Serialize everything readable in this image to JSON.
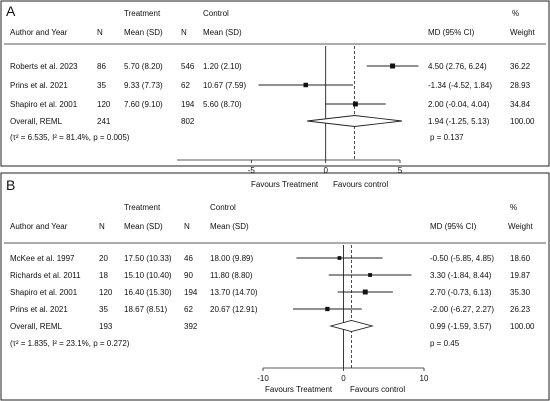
{
  "chart_data": [
    {
      "type": "forest",
      "panel_label": "A",
      "headers": {
        "author_year": "Author and Year",
        "n_treatment": "N",
        "treatment_group": "Treatment",
        "treatment_mean": "Mean (SD)",
        "n_control": "N",
        "control_group": "Control",
        "control_mean": "Mean (SD)",
        "md": "MD (95% CI)",
        "weight_pct": "%",
        "weight": "Weight"
      },
      "studies": [
        {
          "author": "Roberts et al. 2023",
          "n_t": "86",
          "mean_t": "5.70 (8.20)",
          "n_c": "546",
          "mean_c": "1.20 (2.10)",
          "md_text": "4.50 (2.76, 6.24)",
          "weight": "36.22",
          "md": 4.5,
          "lo": 2.76,
          "hi": 6.24
        },
        {
          "author": "Prins et al. 2021",
          "n_t": "35",
          "mean_t": "9.33 (7.73)",
          "n_c": "62",
          "mean_c": "10.67 (7.59)",
          "md_text": "-1.34 (-4.52, 1.84)",
          "weight": "28.93",
          "md": -1.34,
          "lo": -4.52,
          "hi": 1.84
        },
        {
          "author": "Shapiro et al. 2001",
          "n_t": "120",
          "mean_t": "7.60 (9.10)",
          "n_c": "194",
          "mean_c": "5.60 (8.70)",
          "md_text": "2.00 (-0.04, 4.04)",
          "weight": "34.84",
          "md": 2.0,
          "lo": -0.04,
          "hi": 4.04
        }
      ],
      "overall": {
        "label": "Overall, REML",
        "n_t": "241",
        "n_c": "802",
        "md_text": "1.94 (-1.25, 5.13)",
        "weight": "100.00",
        "md": 1.94,
        "lo": -1.25,
        "hi": 5.13
      },
      "heterogeneity": "(τ² = 6.535, I² = 81.4%, p = 0.005)",
      "p_value": "p = 0.137",
      "x_ticks": [
        -5,
        0,
        5
      ],
      "x_range": [
        -10,
        5
      ],
      "favours_left": "Favours Treatment",
      "favours_right": "Favours control"
    },
    {
      "type": "forest",
      "panel_label": "B",
      "headers": {
        "author_year": "Author and Year",
        "n_treatment": "N",
        "treatment_group": "Treatment",
        "treatment_mean": "Mean (SD)",
        "n_control": "N",
        "control_group": "Control",
        "control_mean": "Mean (SD)",
        "md": "MD (95% CI)",
        "weight_pct": "%",
        "weight": "Weight"
      },
      "studies": [
        {
          "author": "McKee et al. 1997",
          "n_t": "20",
          "mean_t": "17.50 (10.33)",
          "n_c": "46",
          "mean_c": "18.00 (9.89)",
          "md_text": "-0.50 (-5.85, 4.85)",
          "weight": "18.60",
          "md": -0.5,
          "lo": -5.85,
          "hi": 4.85
        },
        {
          "author": "Richards et al. 2011",
          "n_t": "18",
          "mean_t": "15.10 (10.40)",
          "n_c": "90",
          "mean_c": "11.80 (8.80)",
          "md_text": "3.30 (-1.84, 8.44)",
          "weight": "19.87",
          "md": 3.3,
          "lo": -1.84,
          "hi": 8.44
        },
        {
          "author": "Shapiro et al. 2001",
          "n_t": "120",
          "mean_t": "16.40 (15.30)",
          "n_c": "194",
          "mean_c": "13.70 (14.70)",
          "md_text": "2.70 (-0.73, 6.13)",
          "weight": "35.30",
          "md": 2.7,
          "lo": -0.73,
          "hi": 6.13
        },
        {
          "author": "Prins et al. 2021",
          "n_t": "35",
          "mean_t": "18.67 (8.51)",
          "n_c": "62",
          "mean_c": "20.67 (12.91)",
          "md_text": "-2.00 (-6.27, 2.27)",
          "weight": "26.23",
          "md": -2.0,
          "lo": -6.27,
          "hi": 2.27
        }
      ],
      "overall": {
        "label": "Overall, REML",
        "n_t": "193",
        "n_c": "392",
        "md_text": "0.99 (-1.59, 3.57)",
        "weight": "100.00",
        "md": 0.99,
        "lo": -1.59,
        "hi": 3.57
      },
      "heterogeneity": "(τ² = 1.835, I² = 23.1%, p = 0.272)",
      "p_value": "p = 0.45",
      "x_ticks": [
        -10,
        0,
        10
      ],
      "x_range": [
        -10,
        10
      ],
      "favours_left": "Favours Treatment",
      "favours_right": "Favours control"
    }
  ]
}
